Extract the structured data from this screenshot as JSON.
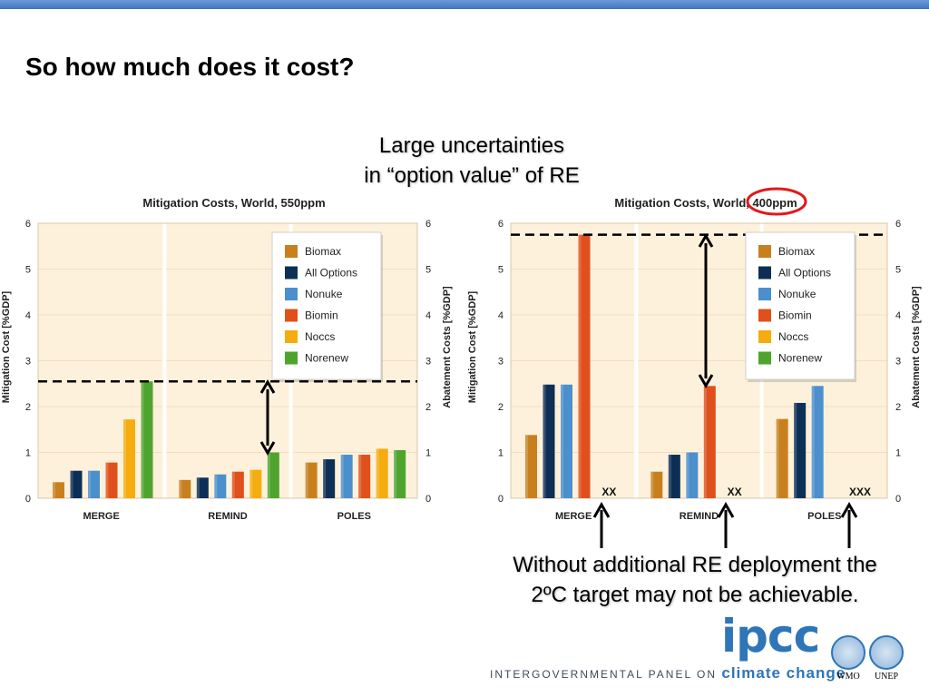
{
  "slide": {
    "title": "So how much does it cost?",
    "annotation_top_line1": "Large uncertainties",
    "annotation_top_line2": "in “option value” of RE",
    "annotation_bottom_line1": "Without additional RE deployment the",
    "annotation_bottom_line2": "2ºC target may not be achievable."
  },
  "logos": {
    "ipcc": "ipcc",
    "ipcc_subtitle_prefix": "INTERGOVERNMENTAL PANEL ON",
    "ipcc_subtitle_suffix": "climate change",
    "wmo": "WMO",
    "unep": "UNEP"
  },
  "colors": {
    "Biomax": "#c8801e",
    "All Options": "#0e2f55",
    "Nonuke": "#4b8fcc",
    "Biomin": "#e0501c",
    "Noccs": "#f4ac0e",
    "Norenew": "#4ea42e",
    "plot_bg": "#fdf1dc",
    "highlight_circle": "#e0191a"
  },
  "chart_data": [
    {
      "type": "bar",
      "title": "Mitigation Costs, World, 550ppm",
      "ylabel": "Mitigation Cost [%GDP]",
      "ylabel_right": "Abatement Costs [%GDP]",
      "ylim": [
        0,
        6
      ],
      "yticks": [
        "0",
        "1",
        "2",
        "3",
        "4",
        "5",
        "6"
      ],
      "categories": [
        "MERGE",
        "REMIND",
        "POLES"
      ],
      "series": [
        {
          "name": "Biomax",
          "values": [
            0.35,
            0.4,
            0.78
          ]
        },
        {
          "name": "All Options",
          "values": [
            0.6,
            0.45,
            0.85
          ]
        },
        {
          "name": "Nonuke",
          "values": [
            0.6,
            0.52,
            0.95
          ]
        },
        {
          "name": "Biomin",
          "values": [
            0.78,
            0.58,
            0.95
          ]
        },
        {
          "name": "Noccs",
          "values": [
            1.72,
            0.62,
            1.08
          ]
        },
        {
          "name": "Norenew",
          "values": [
            2.55,
            1.0,
            1.05
          ]
        }
      ],
      "dashed_line": 2.55,
      "missing_labels": [
        "",
        "",
        ""
      ],
      "legend": "top-right"
    },
    {
      "type": "bar",
      "title": "Mitigation Costs, World, 400ppm",
      "ylabel": "Mitigation Cost [%GDP]",
      "ylabel_right": "Abatement Costs [%GDP]",
      "ylim": [
        0,
        6
      ],
      "yticks": [
        "0",
        "1",
        "2",
        "3",
        "4",
        "5",
        "6"
      ],
      "categories": [
        "MERGE",
        "REMIND",
        "POLES"
      ],
      "series": [
        {
          "name": "Biomax",
          "values": [
            1.38,
            0.58,
            1.73
          ]
        },
        {
          "name": "All Options",
          "values": [
            2.48,
            0.95,
            2.08
          ]
        },
        {
          "name": "Nonuke",
          "values": [
            2.48,
            1.0,
            2.45
          ]
        },
        {
          "name": "Biomin",
          "values": [
            5.75,
            2.45,
            null
          ]
        },
        {
          "name": "Noccs",
          "values": [
            null,
            null,
            null
          ]
        },
        {
          "name": "Norenew",
          "values": [
            null,
            null,
            null
          ]
        }
      ],
      "dashed_line": 5.75,
      "missing_labels": [
        "XX",
        "XX",
        "XXX"
      ],
      "legend": "top-right"
    }
  ]
}
